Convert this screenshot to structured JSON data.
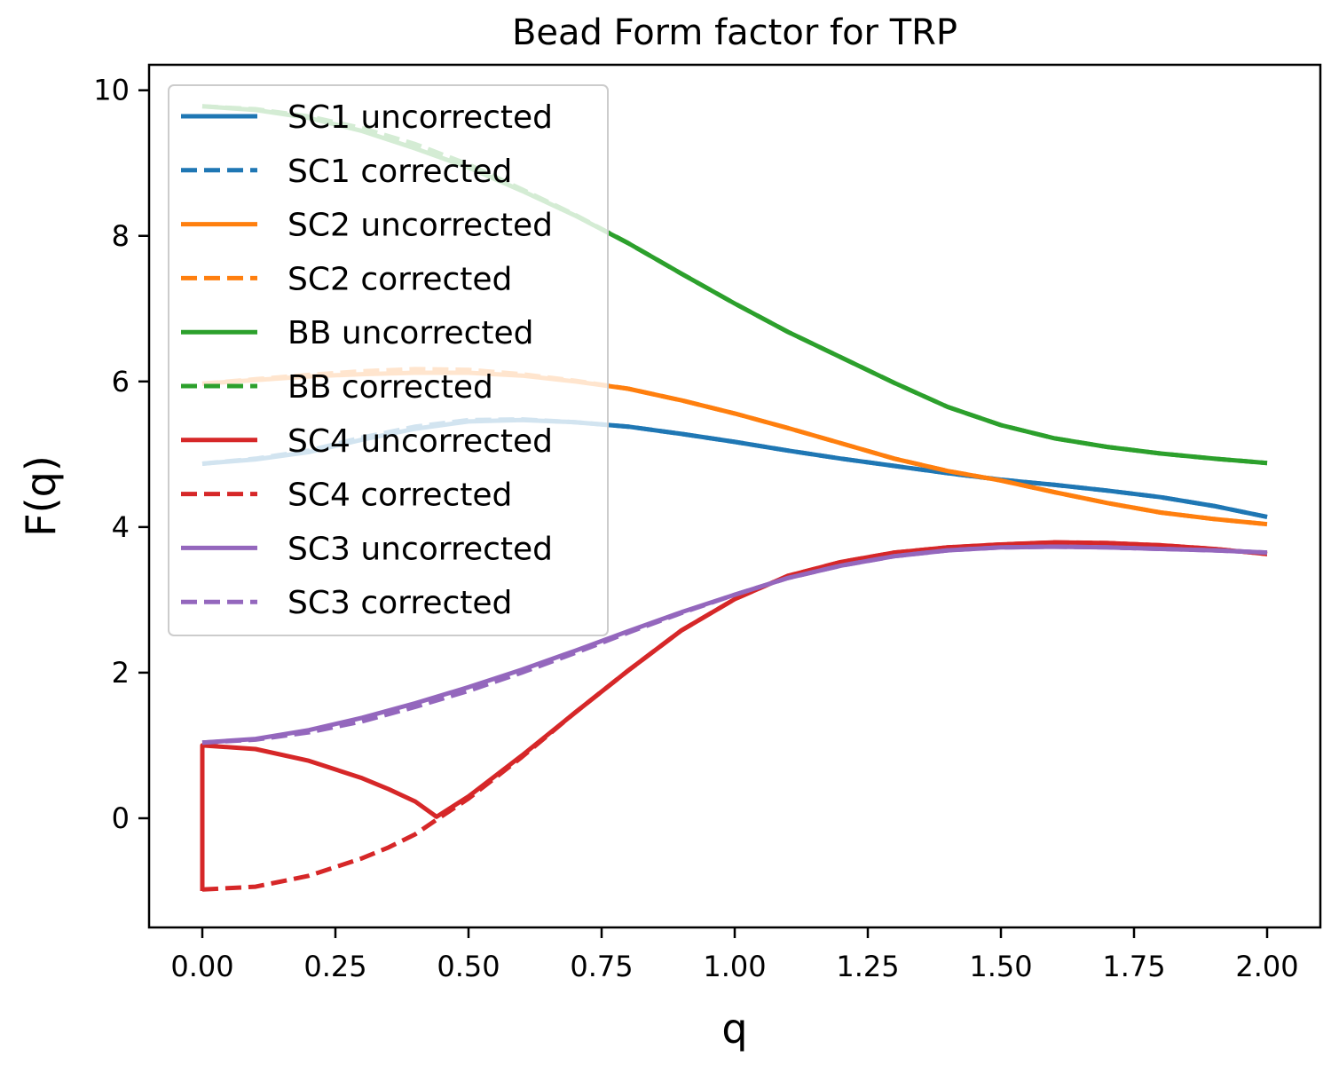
{
  "chart_data": {
    "type": "line",
    "title": "Bead Form factor for TRP",
    "xlabel": "q",
    "ylabel": "F(q)",
    "xlim": [
      -0.1,
      2.1
    ],
    "ylim": [
      -1.5,
      10.35
    ],
    "xticks": [
      0.0,
      0.25,
      0.5,
      0.75,
      1.0,
      1.25,
      1.5,
      1.75,
      2.0
    ],
    "xtick_labels": [
      "0.00",
      "0.25",
      "0.50",
      "0.75",
      "1.00",
      "1.25",
      "1.50",
      "1.75",
      "2.00"
    ],
    "yticks": [
      0,
      2,
      4,
      6,
      8,
      10
    ],
    "ytick_labels": [
      "0",
      "2",
      "4",
      "6",
      "8",
      "10"
    ],
    "grid": false,
    "legend_position": "upper-left",
    "colors": {
      "SC1": "#1f77b4",
      "SC2": "#ff7f0e",
      "BB": "#2ca02c",
      "SC4": "#d62728",
      "SC3": "#9467bd"
    },
    "series": [
      {
        "name": "SC1 uncorrected",
        "color": "#1f77b4",
        "style": "solid",
        "x": [
          0.0,
          0.1,
          0.2,
          0.3,
          0.4,
          0.5,
          0.6,
          0.7,
          0.8,
          0.9,
          1.0,
          1.1,
          1.2,
          1.3,
          1.4,
          1.5,
          1.6,
          1.7,
          1.8,
          1.9,
          2.0
        ],
        "y": [
          4.87,
          4.93,
          5.03,
          5.2,
          5.35,
          5.45,
          5.47,
          5.44,
          5.38,
          5.28,
          5.17,
          5.05,
          4.94,
          4.84,
          4.74,
          4.65,
          4.58,
          4.5,
          4.41,
          4.29,
          4.14
        ]
      },
      {
        "name": "SC1 corrected",
        "color": "#1f77b4",
        "style": "dashed",
        "x": [
          0.0,
          0.1,
          0.2,
          0.3,
          0.4,
          0.5,
          0.6,
          0.7,
          0.8,
          0.9,
          1.0,
          1.1,
          1.2,
          1.3,
          1.4,
          1.5,
          1.6,
          1.7,
          1.8,
          1.9,
          2.0
        ],
        "y": [
          4.87,
          4.94,
          5.05,
          5.23,
          5.38,
          5.47,
          5.48,
          5.44,
          5.38,
          5.28,
          5.17,
          5.05,
          4.94,
          4.84,
          4.74,
          4.65,
          4.58,
          4.5,
          4.41,
          4.29,
          4.14
        ]
      },
      {
        "name": "SC2 uncorrected",
        "color": "#ff7f0e",
        "style": "solid",
        "x": [
          0.0,
          0.1,
          0.2,
          0.3,
          0.4,
          0.5,
          0.6,
          0.7,
          0.8,
          0.9,
          1.0,
          1.1,
          1.2,
          1.3,
          1.4,
          1.5,
          1.6,
          1.7,
          1.8,
          1.9,
          2.0
        ],
        "y": [
          5.97,
          6.02,
          6.07,
          6.1,
          6.12,
          6.12,
          6.08,
          6.0,
          5.9,
          5.74,
          5.56,
          5.36,
          5.15,
          4.94,
          4.77,
          4.64,
          4.48,
          4.33,
          4.2,
          4.11,
          4.04
        ]
      },
      {
        "name": "SC2 corrected",
        "color": "#ff7f0e",
        "style": "dashed",
        "x": [
          0.0,
          0.1,
          0.2,
          0.3,
          0.4,
          0.5,
          0.6,
          0.7,
          0.8,
          0.9,
          1.0,
          1.1,
          1.2,
          1.3,
          1.4,
          1.5,
          1.6,
          1.7,
          1.8,
          1.9,
          2.0
        ],
        "y": [
          5.97,
          6.03,
          6.09,
          6.14,
          6.17,
          6.16,
          6.1,
          6.01,
          5.9,
          5.74,
          5.56,
          5.36,
          5.15,
          4.94,
          4.77,
          4.64,
          4.48,
          4.33,
          4.2,
          4.11,
          4.04
        ]
      },
      {
        "name": "BB uncorrected",
        "color": "#2ca02c",
        "style": "solid",
        "x": [
          0.0,
          0.1,
          0.2,
          0.3,
          0.4,
          0.5,
          0.6,
          0.7,
          0.8,
          0.9,
          1.0,
          1.1,
          1.2,
          1.3,
          1.4,
          1.5,
          1.6,
          1.7,
          1.8,
          1.9,
          2.0
        ],
        "y": [
          9.78,
          9.73,
          9.62,
          9.44,
          9.2,
          8.94,
          8.62,
          8.28,
          7.9,
          7.48,
          7.07,
          6.68,
          6.33,
          5.98,
          5.65,
          5.4,
          5.22,
          5.1,
          5.01,
          4.94,
          4.88
        ]
      },
      {
        "name": "BB corrected",
        "color": "#2ca02c",
        "style": "dashed",
        "x": [
          0.0,
          0.1,
          0.2,
          0.3,
          0.4,
          0.5,
          0.6,
          0.7,
          0.8,
          0.9,
          1.0,
          1.1,
          1.2,
          1.3,
          1.4,
          1.5,
          1.6,
          1.7,
          1.8,
          1.9,
          2.0
        ],
        "y": [
          9.78,
          9.74,
          9.64,
          9.48,
          9.26,
          8.98,
          8.64,
          8.29,
          7.9,
          7.48,
          7.07,
          6.68,
          6.33,
          5.98,
          5.65,
          5.4,
          5.22,
          5.1,
          5.01,
          4.94,
          4.88
        ]
      },
      {
        "name": "SC4 uncorrected",
        "color": "#d62728",
        "style": "solid",
        "x": [
          0.0,
          0.0,
          0.1,
          0.2,
          0.3,
          0.35,
          0.4,
          0.44,
          0.5,
          0.6,
          0.7,
          0.8,
          0.9,
          1.0,
          1.1,
          1.2,
          1.3,
          1.4,
          1.5,
          1.6,
          1.7,
          1.8,
          1.9,
          2.0
        ],
        "y": [
          -1.0,
          1.0,
          0.95,
          0.79,
          0.55,
          0.4,
          0.23,
          0.02,
          0.3,
          0.86,
          1.45,
          2.03,
          2.58,
          3.01,
          3.33,
          3.52,
          3.65,
          3.72,
          3.76,
          3.79,
          3.78,
          3.75,
          3.7,
          3.63
        ]
      },
      {
        "name": "SC4 corrected",
        "color": "#d62728",
        "style": "dashed",
        "x": [
          0.0,
          0.1,
          0.2,
          0.3,
          0.35,
          0.4,
          0.44,
          0.5,
          0.6,
          0.7,
          0.8,
          0.9,
          1.0,
          1.1,
          1.2,
          1.3,
          1.4,
          1.5,
          1.6,
          1.7,
          1.8,
          1.9,
          2.0
        ],
        "y": [
          -0.98,
          -0.94,
          -0.79,
          -0.55,
          -0.4,
          -0.22,
          -0.02,
          0.27,
          0.84,
          1.45,
          2.03,
          2.58,
          3.01,
          3.33,
          3.52,
          3.65,
          3.72,
          3.76,
          3.79,
          3.78,
          3.75,
          3.7,
          3.63
        ]
      },
      {
        "name": "SC3 uncorrected",
        "color": "#9467bd",
        "style": "solid",
        "x": [
          0.0,
          0.1,
          0.2,
          0.3,
          0.4,
          0.5,
          0.6,
          0.7,
          0.8,
          0.9,
          1.0,
          1.1,
          1.2,
          1.3,
          1.4,
          1.5,
          1.6,
          1.7,
          1.8,
          1.9,
          2.0
        ],
        "y": [
          1.04,
          1.09,
          1.21,
          1.38,
          1.58,
          1.8,
          2.04,
          2.3,
          2.57,
          2.83,
          3.07,
          3.3,
          3.47,
          3.6,
          3.68,
          3.72,
          3.73,
          3.72,
          3.7,
          3.68,
          3.65
        ]
      },
      {
        "name": "SC3 corrected",
        "color": "#9467bd",
        "style": "dashed",
        "x": [
          0.0,
          0.1,
          0.2,
          0.3,
          0.4,
          0.5,
          0.6,
          0.7,
          0.8,
          0.9,
          1.0,
          1.1,
          1.2,
          1.3,
          1.4,
          1.5,
          1.6,
          1.7,
          1.8,
          1.9,
          2.0
        ],
        "y": [
          1.04,
          1.08,
          1.18,
          1.33,
          1.53,
          1.75,
          2.0,
          2.27,
          2.55,
          2.82,
          3.07,
          3.3,
          3.47,
          3.6,
          3.68,
          3.72,
          3.73,
          3.72,
          3.7,
          3.68,
          3.65
        ]
      }
    ]
  }
}
